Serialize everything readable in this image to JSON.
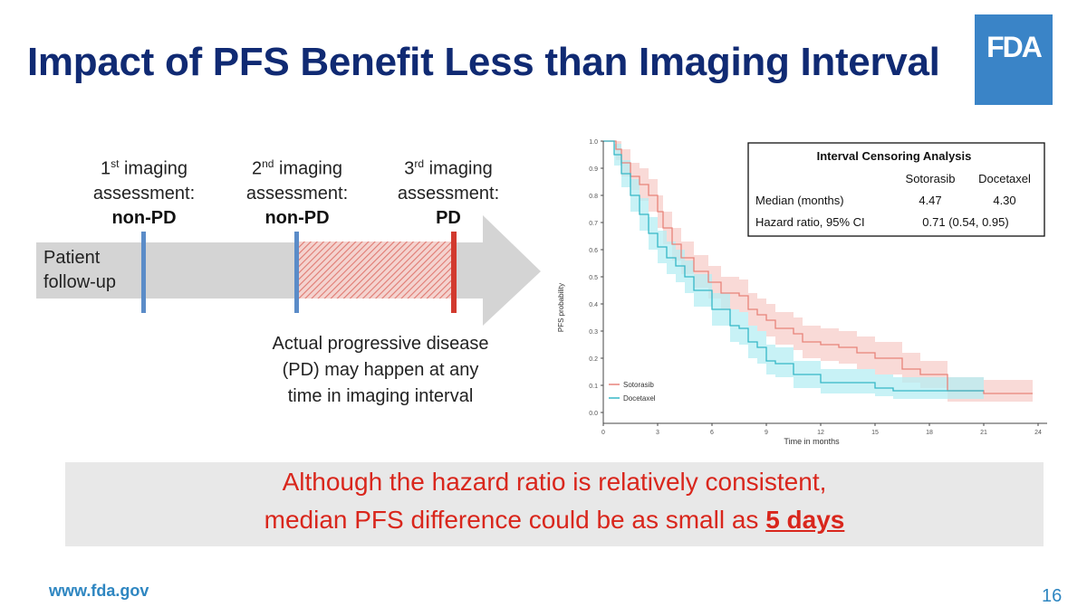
{
  "slide": {
    "title": "Impact of PFS Benefit Less than Imaging Interval",
    "logo_text": "FDA",
    "url": "www.fda.gov",
    "page_number": "16"
  },
  "diagram": {
    "assessments": [
      {
        "ordinal": "1",
        "suffix": "st",
        "line1": " imaging",
        "line2": "assessment:",
        "result": "non-PD"
      },
      {
        "ordinal": "2",
        "suffix": "nd",
        "line1": " imaging",
        "line2": "assessment:",
        "result": "non-PD"
      },
      {
        "ordinal": "3",
        "suffix": "rd",
        "line1": " imaging",
        "line2": "assessment:",
        "result": "PD"
      }
    ],
    "follow_line1": "Patient",
    "follow_line2": "follow-up",
    "actual_text": [
      "Actual progressive disease",
      "(PD) may happen at any",
      "time in imaging interval"
    ],
    "colors": {
      "arrow": "#d4d4d4",
      "tick": "#5b8cc8",
      "pd_tick": "#d23a2e",
      "hatch": "#e07a72"
    }
  },
  "banner": {
    "line1": "Although the hazard ratio is relatively consistent,",
    "line2_prefix": "median PFS difference could be as small as ",
    "line2_emph": "5 days"
  },
  "chart_data": {
    "type": "line",
    "ylabel": "PFS probability",
    "xlabel": "Time in months",
    "xlim": [
      0,
      24
    ],
    "ylim": [
      0,
      1.0
    ],
    "x_ticks": [
      0,
      3,
      6,
      9,
      12,
      15,
      18,
      21,
      24
    ],
    "y_ticks": [
      "0.0",
      "0.1",
      "0.2",
      "0.3",
      "0.4",
      "0.5",
      "0.6",
      "0.7",
      "0.8",
      "0.9",
      "1.0"
    ],
    "legend_position": "bottom-left",
    "series": [
      {
        "name": "Sotorasib",
        "color": "#e8837a",
        "band_color": "#f7cdca",
        "x": [
          0,
          0.7,
          1.0,
          1.5,
          2.0,
          2.5,
          3.0,
          3.3,
          3.8,
          4.3,
          5.0,
          5.8,
          6.5,
          7.5,
          8.0,
          8.5,
          9.0,
          9.5,
          10.5,
          11.0,
          12.0,
          13.0,
          14.0,
          15.0,
          16.5,
          17.5,
          19.0,
          21.0,
          23.5
        ],
        "y": [
          1.0,
          0.97,
          0.92,
          0.87,
          0.84,
          0.8,
          0.74,
          0.68,
          0.62,
          0.57,
          0.52,
          0.48,
          0.44,
          0.43,
          0.38,
          0.36,
          0.34,
          0.31,
          0.29,
          0.26,
          0.25,
          0.24,
          0.22,
          0.2,
          0.16,
          0.14,
          0.08,
          0.07,
          0.07
        ],
        "lower": [
          1.0,
          0.93,
          0.87,
          0.82,
          0.78,
          0.74,
          0.68,
          0.62,
          0.56,
          0.51,
          0.46,
          0.42,
          0.38,
          0.37,
          0.32,
          0.3,
          0.28,
          0.25,
          0.23,
          0.2,
          0.19,
          0.18,
          0.16,
          0.14,
          0.11,
          0.09,
          0.04,
          0.04,
          0.04
        ],
        "upper": [
          1.0,
          1.0,
          0.97,
          0.92,
          0.9,
          0.86,
          0.8,
          0.74,
          0.68,
          0.63,
          0.58,
          0.54,
          0.5,
          0.49,
          0.44,
          0.42,
          0.4,
          0.37,
          0.35,
          0.32,
          0.31,
          0.3,
          0.28,
          0.26,
          0.22,
          0.19,
          0.13,
          0.12,
          0.12
        ]
      },
      {
        "name": "Docetaxel",
        "color": "#35b7c7",
        "band_color": "#b6eef3",
        "x": [
          0,
          0.6,
          1.0,
          1.5,
          2.0,
          2.5,
          3.0,
          3.5,
          4.0,
          4.5,
          5.0,
          6.0,
          7.0,
          7.5,
          8.0,
          8.5,
          9.0,
          9.5,
          10.5,
          12.0,
          14.0,
          15.0,
          16.0,
          18.0,
          21.0
        ],
        "y": [
          1.0,
          0.95,
          0.88,
          0.8,
          0.73,
          0.66,
          0.61,
          0.57,
          0.54,
          0.5,
          0.45,
          0.38,
          0.32,
          0.31,
          0.26,
          0.24,
          0.19,
          0.18,
          0.14,
          0.11,
          0.11,
          0.09,
          0.08,
          0.08,
          0.08
        ],
        "lower": [
          1.0,
          0.91,
          0.83,
          0.74,
          0.67,
          0.6,
          0.55,
          0.51,
          0.48,
          0.44,
          0.39,
          0.32,
          0.26,
          0.25,
          0.2,
          0.18,
          0.14,
          0.13,
          0.09,
          0.07,
          0.07,
          0.06,
          0.05,
          0.05,
          0.05
        ],
        "upper": [
          1.0,
          0.99,
          0.93,
          0.86,
          0.79,
          0.72,
          0.67,
          0.63,
          0.6,
          0.56,
          0.51,
          0.44,
          0.38,
          0.37,
          0.32,
          0.3,
          0.25,
          0.24,
          0.19,
          0.16,
          0.16,
          0.14,
          0.13,
          0.13,
          0.13
        ]
      }
    ],
    "table": {
      "title": "Interval Censoring Analysis",
      "columns": [
        "",
        "Sotorasib",
        "Docetaxel"
      ],
      "rows": [
        {
          "label": "Median (months)",
          "values": [
            "4.47",
            "4.30"
          ]
        },
        {
          "label": "Hazard ratio, 95% CI",
          "values": [
            "0.71 (0.54, 0.95)"
          ]
        }
      ]
    }
  }
}
